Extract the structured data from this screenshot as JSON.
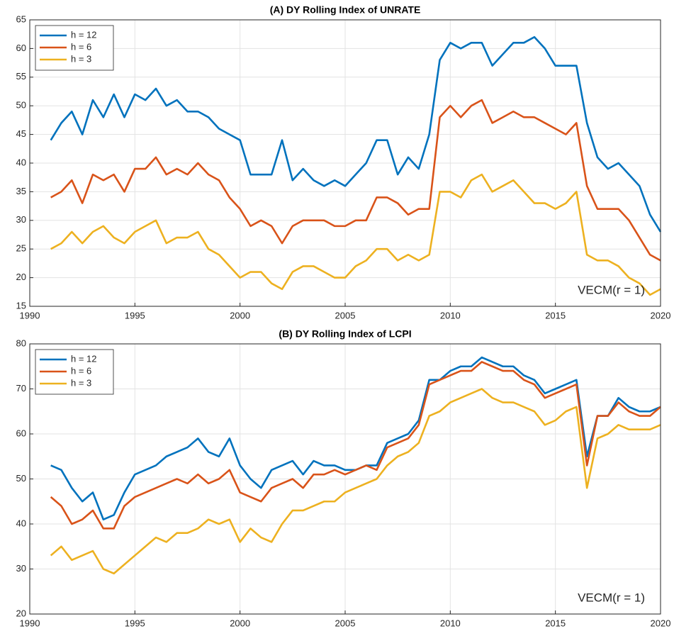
{
  "chart_data": [
    {
      "type": "line",
      "title": "(A) DY Rolling Index of UNRATE",
      "annotation": "VECM(r = 1)",
      "grid": true,
      "legend": "northwest",
      "xlim": [
        1990,
        2020
      ],
      "xticks": [
        1990,
        1995,
        2000,
        2005,
        2010,
        2015,
        2020
      ],
      "ylim": [
        15,
        65
      ],
      "yticks": [
        15,
        20,
        25,
        30,
        35,
        40,
        45,
        50,
        55,
        60,
        65
      ],
      "x": [
        1991,
        1991.5,
        1992,
        1992.5,
        1993,
        1993.5,
        1994,
        1994.5,
        1995,
        1995.5,
        1996,
        1996.5,
        1997,
        1997.5,
        1998,
        1998.5,
        1999,
        1999.5,
        2000,
        2000.5,
        2001,
        2001.5,
        2002,
        2002.5,
        2003,
        2003.5,
        2004,
        2004.5,
        2005,
        2005.5,
        2006,
        2006.5,
        2007,
        2007.5,
        2008,
        2008.5,
        2009,
        2009.5,
        2010,
        2010.5,
        2011,
        2011.5,
        2012,
        2012.5,
        2013,
        2013.5,
        2014,
        2014.5,
        2015,
        2015.5,
        2016,
        2016.5,
        2017,
        2017.5,
        2018,
        2018.5,
        2019,
        2019.5,
        2020
      ],
      "series": [
        {
          "name": "h = 12",
          "color": "#0072BD",
          "values": [
            44,
            47,
            49,
            45,
            51,
            48,
            52,
            48,
            52,
            51,
            53,
            50,
            51,
            49,
            49,
            48,
            46,
            45,
            44,
            38,
            38,
            38,
            44,
            37,
            39,
            37,
            36,
            37,
            36,
            38,
            40,
            44,
            44,
            38,
            41,
            39,
            45,
            58,
            61,
            60,
            61,
            61,
            57,
            59,
            61,
            61,
            62,
            60,
            57,
            57,
            57,
            47,
            41,
            39,
            40,
            38,
            36,
            31,
            28
          ]
        },
        {
          "name": "h = 6",
          "color": "#D95319",
          "values": [
            34,
            35,
            37,
            33,
            38,
            37,
            38,
            35,
            39,
            39,
            41,
            38,
            39,
            38,
            40,
            38,
            37,
            34,
            32,
            29,
            30,
            29,
            26,
            29,
            30,
            30,
            30,
            29,
            29,
            30,
            30,
            34,
            34,
            33,
            31,
            32,
            32,
            48,
            50,
            48,
            50,
            51,
            47,
            48,
            49,
            48,
            48,
            47,
            46,
            45,
            47,
            36,
            32,
            32,
            32,
            30,
            27,
            24,
            23
          ]
        },
        {
          "name": "h = 3",
          "color": "#EDB120",
          "values": [
            25,
            26,
            28,
            26,
            28,
            29,
            27,
            26,
            28,
            29,
            30,
            26,
            27,
            27,
            28,
            25,
            24,
            22,
            20,
            21,
            21,
            19,
            18,
            21,
            22,
            22,
            21,
            20,
            20,
            22,
            23,
            25,
            25,
            23,
            24,
            23,
            24,
            35,
            35,
            34,
            37,
            38,
            35,
            36,
            37,
            35,
            33,
            33,
            32,
            33,
            35,
            24,
            23,
            23,
            22,
            20,
            19,
            17,
            18
          ]
        }
      ]
    },
    {
      "type": "line",
      "title": "(B) DY Rolling Index of LCPI",
      "annotation": "VECM(r = 1)",
      "grid": true,
      "legend": "northwest",
      "xlim": [
        1990,
        2020
      ],
      "xticks": [
        1990,
        1995,
        2000,
        2005,
        2010,
        2015,
        2020
      ],
      "ylim": [
        20,
        80
      ],
      "yticks": [
        20,
        30,
        40,
        50,
        60,
        70,
        80
      ],
      "x": [
        1991,
        1991.5,
        1992,
        1992.5,
        1993,
        1993.5,
        1994,
        1994.5,
        1995,
        1995.5,
        1996,
        1996.5,
        1997,
        1997.5,
        1998,
        1998.5,
        1999,
        1999.5,
        2000,
        2000.5,
        2001,
        2001.5,
        2002,
        2002.5,
        2003,
        2003.5,
        2004,
        2004.5,
        2005,
        2005.5,
        2006,
        2006.5,
        2007,
        2007.5,
        2008,
        2008.5,
        2009,
        2009.5,
        2010,
        2010.5,
        2011,
        2011.5,
        2012,
        2012.5,
        2013,
        2013.5,
        2014,
        2014.5,
        2015,
        2015.5,
        2016,
        2016.5,
        2017,
        2017.5,
        2018,
        2018.5,
        2019,
        2019.5,
        2020
      ],
      "series": [
        {
          "name": "h = 12",
          "color": "#0072BD",
          "values": [
            53,
            52,
            48,
            45,
            47,
            41,
            42,
            47,
            51,
            52,
            53,
            55,
            56,
            57,
            59,
            56,
            55,
            59,
            53,
            50,
            48,
            52,
            53,
            54,
            51,
            54,
            53,
            53,
            52,
            52,
            53,
            53,
            58,
            59,
            60,
            63,
            72,
            72,
            74,
            75,
            75,
            77,
            76,
            75,
            75,
            73,
            72,
            69,
            70,
            71,
            72,
            55,
            64,
            64,
            68,
            66,
            65,
            65,
            66
          ]
        },
        {
          "name": "h = 6",
          "color": "#D95319",
          "values": [
            46,
            44,
            40,
            41,
            43,
            39,
            39,
            44,
            46,
            47,
            48,
            49,
            50,
            49,
            51,
            49,
            50,
            52,
            47,
            46,
            45,
            48,
            49,
            50,
            48,
            51,
            51,
            52,
            51,
            52,
            53,
            52,
            57,
            58,
            59,
            62,
            71,
            72,
            73,
            74,
            74,
            76,
            75,
            74,
            74,
            72,
            71,
            68,
            69,
            70,
            71,
            53,
            64,
            64,
            67,
            65,
            64,
            64,
            66
          ]
        },
        {
          "name": "h = 3",
          "color": "#EDB120",
          "values": [
            33,
            35,
            32,
            33,
            34,
            30,
            29,
            31,
            33,
            35,
            37,
            36,
            38,
            38,
            39,
            41,
            40,
            41,
            36,
            39,
            37,
            36,
            40,
            43,
            43,
            44,
            45,
            45,
            47,
            48,
            49,
            50,
            53,
            55,
            56,
            58,
            64,
            65,
            67,
            68,
            69,
            70,
            68,
            67,
            67,
            66,
            65,
            62,
            63,
            65,
            66,
            48,
            59,
            60,
            62,
            61,
            61,
            61,
            62
          ]
        }
      ]
    }
  ]
}
